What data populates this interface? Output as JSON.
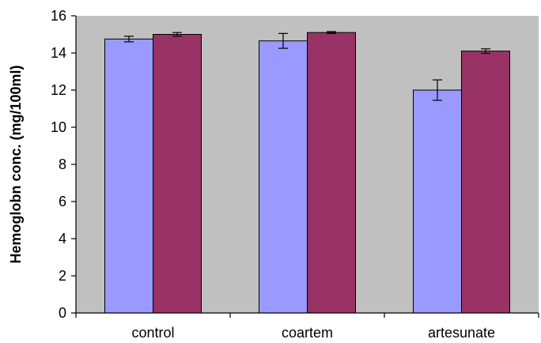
{
  "chart_data": {
    "type": "bar",
    "title": "",
    "xlabel": "",
    "ylabel": "Hemoglobn conc. (mg/100ml)",
    "categories": [
      "control",
      "coartem",
      "artesunate"
    ],
    "series": [
      {
        "color": "#9999ff",
        "values": [
          14.75,
          14.65,
          12.0
        ],
        "errors": [
          0.15,
          0.4,
          0.55
        ]
      },
      {
        "color": "#993366",
        "values": [
          15.0,
          15.1,
          14.1
        ],
        "errors": [
          0.1,
          0.05,
          0.12
        ]
      }
    ],
    "ylim": [
      0,
      16
    ],
    "yticks": [
      0,
      2,
      4,
      6,
      8,
      10,
      12,
      14,
      16
    ],
    "grid": false,
    "legend": "none",
    "plot_background": "#c0c0c0"
  }
}
